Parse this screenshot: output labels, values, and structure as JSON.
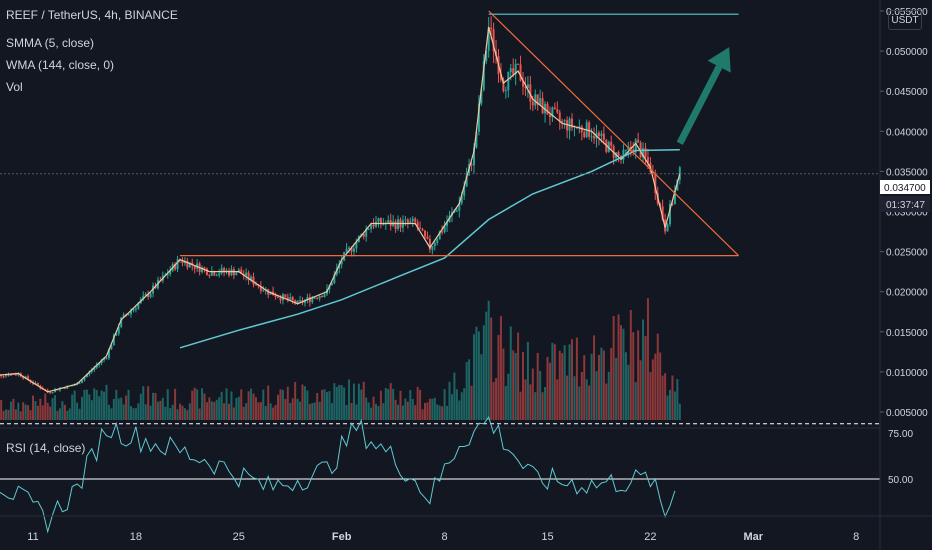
{
  "header": {
    "symbol_line": "REEF / TetherUS, 4h, BINANCE",
    "indicator_smma": "SMMA (5, close)",
    "indicator_wma": "WMA (144, close, 0)",
    "indicator_vol": "Vol",
    "rsi_label": "RSI (14, close)",
    "currency": "USDT"
  },
  "price_badge": {
    "price": "0.034700",
    "countdown": "01:37:47"
  },
  "colors": {
    "background": "#131722",
    "up": "#26a69a",
    "down": "#ef5350",
    "wma": "#5fc9d2",
    "smma": "#f0c8a0",
    "trendline": "#ef6c3a",
    "resistance": "#5fc9d2",
    "arrow": "#1f7a6b",
    "rsi": "#5fc9d2",
    "text": "#d1d4dc"
  },
  "chart_data": {
    "type": "candlestick",
    "timeframe": "4h",
    "x_tick_labels": [
      "11",
      "18",
      "25",
      "Feb",
      "8",
      "15",
      "22",
      "Mar",
      "8"
    ],
    "price_axis_labels": [
      "0.005000",
      "0.010000",
      "0.015000",
      "0.020000",
      "0.025000",
      "0.030000",
      "0.035000",
      "0.040000",
      "0.045000",
      "0.050000",
      "0.055000"
    ],
    "ylim": [
      0.003,
      0.057
    ],
    "rsi_axis_labels": [
      "50.00",
      "75.00"
    ],
    "rsi_levels": [
      50,
      80
    ],
    "last_price": 0.0347,
    "price_path": [
      {
        "x": "Jan 8",
        "y": 0.0095
      },
      {
        "x": "Jan 10",
        "y": 0.0098
      },
      {
        "x": "Jan 12",
        "y": 0.0075
      },
      {
        "x": "Jan 14",
        "y": 0.0085
      },
      {
        "x": "Jan 16",
        "y": 0.012
      },
      {
        "x": "Jan 17",
        "y": 0.0165
      },
      {
        "x": "Jan 19",
        "y": 0.02
      },
      {
        "x": "Jan 21",
        "y": 0.024
      },
      {
        "x": "Jan 23",
        "y": 0.0225
      },
      {
        "x": "Jan 25",
        "y": 0.0225
      },
      {
        "x": "Jan 27",
        "y": 0.02
      },
      {
        "x": "Jan 29",
        "y": 0.0185
      },
      {
        "x": "Jan 31",
        "y": 0.02
      },
      {
        "x": "Feb 1",
        "y": 0.024
      },
      {
        "x": "Feb 3",
        "y": 0.0285
      },
      {
        "x": "Feb 6",
        "y": 0.0285
      },
      {
        "x": "Feb 7",
        "y": 0.0255
      },
      {
        "x": "Feb 9",
        "y": 0.031
      },
      {
        "x": "Feb 10",
        "y": 0.0375
      },
      {
        "x": "Feb 11",
        "y": 0.053
      },
      {
        "x": "Feb 12",
        "y": 0.046
      },
      {
        "x": "Feb 13",
        "y": 0.0475
      },
      {
        "x": "Feb 14",
        "y": 0.044
      },
      {
        "x": "Feb 16",
        "y": 0.041
      },
      {
        "x": "Feb 18",
        "y": 0.04
      },
      {
        "x": "Feb 20",
        "y": 0.0365
      },
      {
        "x": "Feb 21",
        "y": 0.0385
      },
      {
        "x": "Feb 22",
        "y": 0.0355
      },
      {
        "x": "Feb 23",
        "y": 0.028
      },
      {
        "x": "Feb 24",
        "y": 0.0347
      }
    ],
    "wma_path": [
      {
        "x": "Jan 21",
        "y": 0.013
      },
      {
        "x": "Jan 25",
        "y": 0.0152
      },
      {
        "x": "Jan 29",
        "y": 0.0172
      },
      {
        "x": "Feb 1",
        "y": 0.019
      },
      {
        "x": "Feb 5",
        "y": 0.022
      },
      {
        "x": "Feb 8",
        "y": 0.0242
      },
      {
        "x": "Feb 11",
        "y": 0.029
      },
      {
        "x": "Feb 14",
        "y": 0.0322
      },
      {
        "x": "Feb 18",
        "y": 0.035
      },
      {
        "x": "Feb 21",
        "y": 0.0376
      },
      {
        "x": "Feb 24",
        "y": 0.0377
      }
    ],
    "volume_path": [
      {
        "x": "Jan 8",
        "y": 0.3
      },
      {
        "x": "Jan 17",
        "y": 0.6
      },
      {
        "x": "Jan 21",
        "y": 0.5
      },
      {
        "x": "Feb 1",
        "y": 0.7
      },
      {
        "x": "Feb 8",
        "y": 0.5
      },
      {
        "x": "Feb 11",
        "y": 2.0
      },
      {
        "x": "Feb 14",
        "y": 1.2
      },
      {
        "x": "Feb 22",
        "y": 2.0
      },
      {
        "x": "Feb 24",
        "y": 0.6
      }
    ],
    "rsi_path": [
      {
        "x": "Jan 8",
        "y": 52
      },
      {
        "x": "Jan 12",
        "y": 28
      },
      {
        "x": "Jan 14",
        "y": 45
      },
      {
        "x": "Jan 16",
        "y": 78
      },
      {
        "x": "Jan 19",
        "y": 70
      },
      {
        "x": "Jan 23",
        "y": 60
      },
      {
        "x": "Jan 27",
        "y": 45
      },
      {
        "x": "Jan 31",
        "y": 55
      },
      {
        "x": "Feb 2",
        "y": 78
      },
      {
        "x": "Feb 5",
        "y": 58
      },
      {
        "x": "Feb 7",
        "y": 40
      },
      {
        "x": "Feb 9",
        "y": 70
      },
      {
        "x": "Feb 11",
        "y": 82
      },
      {
        "x": "Feb 14",
        "y": 50
      },
      {
        "x": "Feb 18",
        "y": 47
      },
      {
        "x": "Feb 22",
        "y": 50
      },
      {
        "x": "Feb 23",
        "y": 30
      },
      {
        "x": "Feb 24",
        "y": 52
      }
    ],
    "drawings": {
      "resistance_line": {
        "from": "Feb 11",
        "to": "Feb 28",
        "y": 0.0546
      },
      "support_line": {
        "from": "Jan 21",
        "to": "Feb 28",
        "y": 0.0245
      },
      "descending_trendline": {
        "from": {
          "x": "Feb 11",
          "y": 0.055
        },
        "to": {
          "x": "Feb 28",
          "y": 0.0245
        }
      },
      "arrow": {
        "from": {
          "x": "Feb 24",
          "y": 0.0385
        },
        "to": {
          "x": "Feb 26",
          "y": 0.0505
        },
        "direction": "up"
      }
    }
  }
}
